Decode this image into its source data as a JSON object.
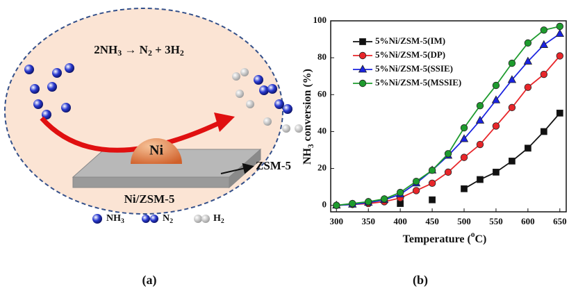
{
  "panel_a": {
    "equation": [
      "2NH",
      "3",
      " → N",
      "2",
      " + 3H",
      "2"
    ],
    "ni": "Ni",
    "zsm": "ZSM-5",
    "support": "Ni/ZSM-5",
    "legend": [
      [
        "NH",
        "3"
      ],
      [
        "N",
        "2"
      ],
      [
        "H",
        "2"
      ]
    ],
    "caption": "(a)"
  },
  "chart_data": {
    "type": "line",
    "caption": "(b)",
    "x_label": [
      "Temperature (",
      "o",
      "C)"
    ],
    "y_label": [
      "NH",
      "3",
      " conversion (%)"
    ],
    "x": [
      300,
      325,
      350,
      375,
      400,
      425,
      450,
      475,
      500,
      525,
      550,
      575,
      600,
      625,
      650
    ],
    "series": [
      {
        "name": "5%Ni/ZSM-5(IM)",
        "color": "#111111",
        "marker": "square",
        "values": [
          null,
          null,
          null,
          null,
          1,
          null,
          3,
          null,
          9,
          14,
          18,
          24,
          31,
          40,
          50
        ]
      },
      {
        "name": "5%Ni/ZSM-5(DP)",
        "color": "#e8262a",
        "marker": "circle",
        "values": [
          0,
          0.5,
          1,
          2,
          4,
          8,
          12,
          18,
          26,
          33,
          43,
          53,
          64,
          71,
          81
        ]
      },
      {
        "name": "5%Ni/ZSM-5(SSIE)",
        "color": "#1a23e0",
        "marker": "triangle",
        "values": [
          0,
          0.5,
          1.5,
          3,
          6,
          12,
          19,
          27,
          36,
          46,
          57,
          68,
          78,
          87,
          93
        ]
      },
      {
        "name": "5%Ni/ZSM-5(MSSIE)",
        "color": "#1e9b2e",
        "marker": "circle",
        "values": [
          0,
          1,
          2,
          3.5,
          7,
          13,
          19,
          28,
          42,
          54,
          65,
          77,
          88,
          95,
          97
        ]
      }
    ],
    "xlim": [
      291,
      660
    ],
    "ylim": [
      -3.5,
      100
    ],
    "xticks": [
      300,
      350,
      400,
      450,
      500,
      550,
      600,
      650
    ],
    "yticks": [
      0,
      20,
      40,
      60,
      80,
      100
    ]
  }
}
